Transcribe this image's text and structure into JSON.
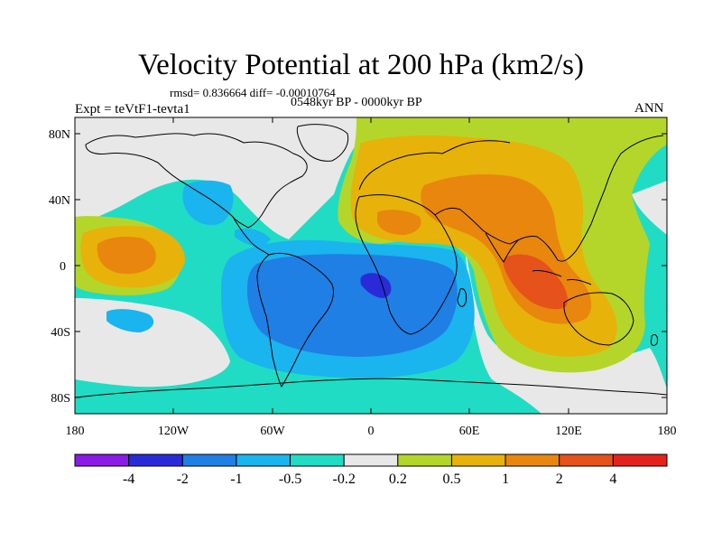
{
  "title": "Velocity Potential at 200 hPa (km2/s)",
  "stats": "rmsd= 0.836664 diff= -0.00010764",
  "period": "0548kyr BP - 0000kyr BP",
  "experiment": "Expt = teVtF1-tevta1",
  "season": "ANN",
  "lat_ticks": [
    "80N",
    "40N",
    "0",
    "40S",
    "80S"
  ],
  "lon_ticks": [
    "180",
    "120W",
    "60W",
    "0",
    "60E",
    "120E",
    "180"
  ],
  "colorbar": {
    "colors": [
      "#8a1ce6",
      "#2a2bd8",
      "#1f7fe4",
      "#1ab4ee",
      "#20dcc4",
      "#e8e8e8",
      "#b4d62a",
      "#e7b20a",
      "#e8860e",
      "#e5521a",
      "#e4231c"
    ],
    "labels": [
      "-4",
      "-2",
      "-1",
      "-0.5",
      "-0.2",
      "0.2",
      "0.5",
      "1",
      "2",
      "4"
    ]
  }
}
